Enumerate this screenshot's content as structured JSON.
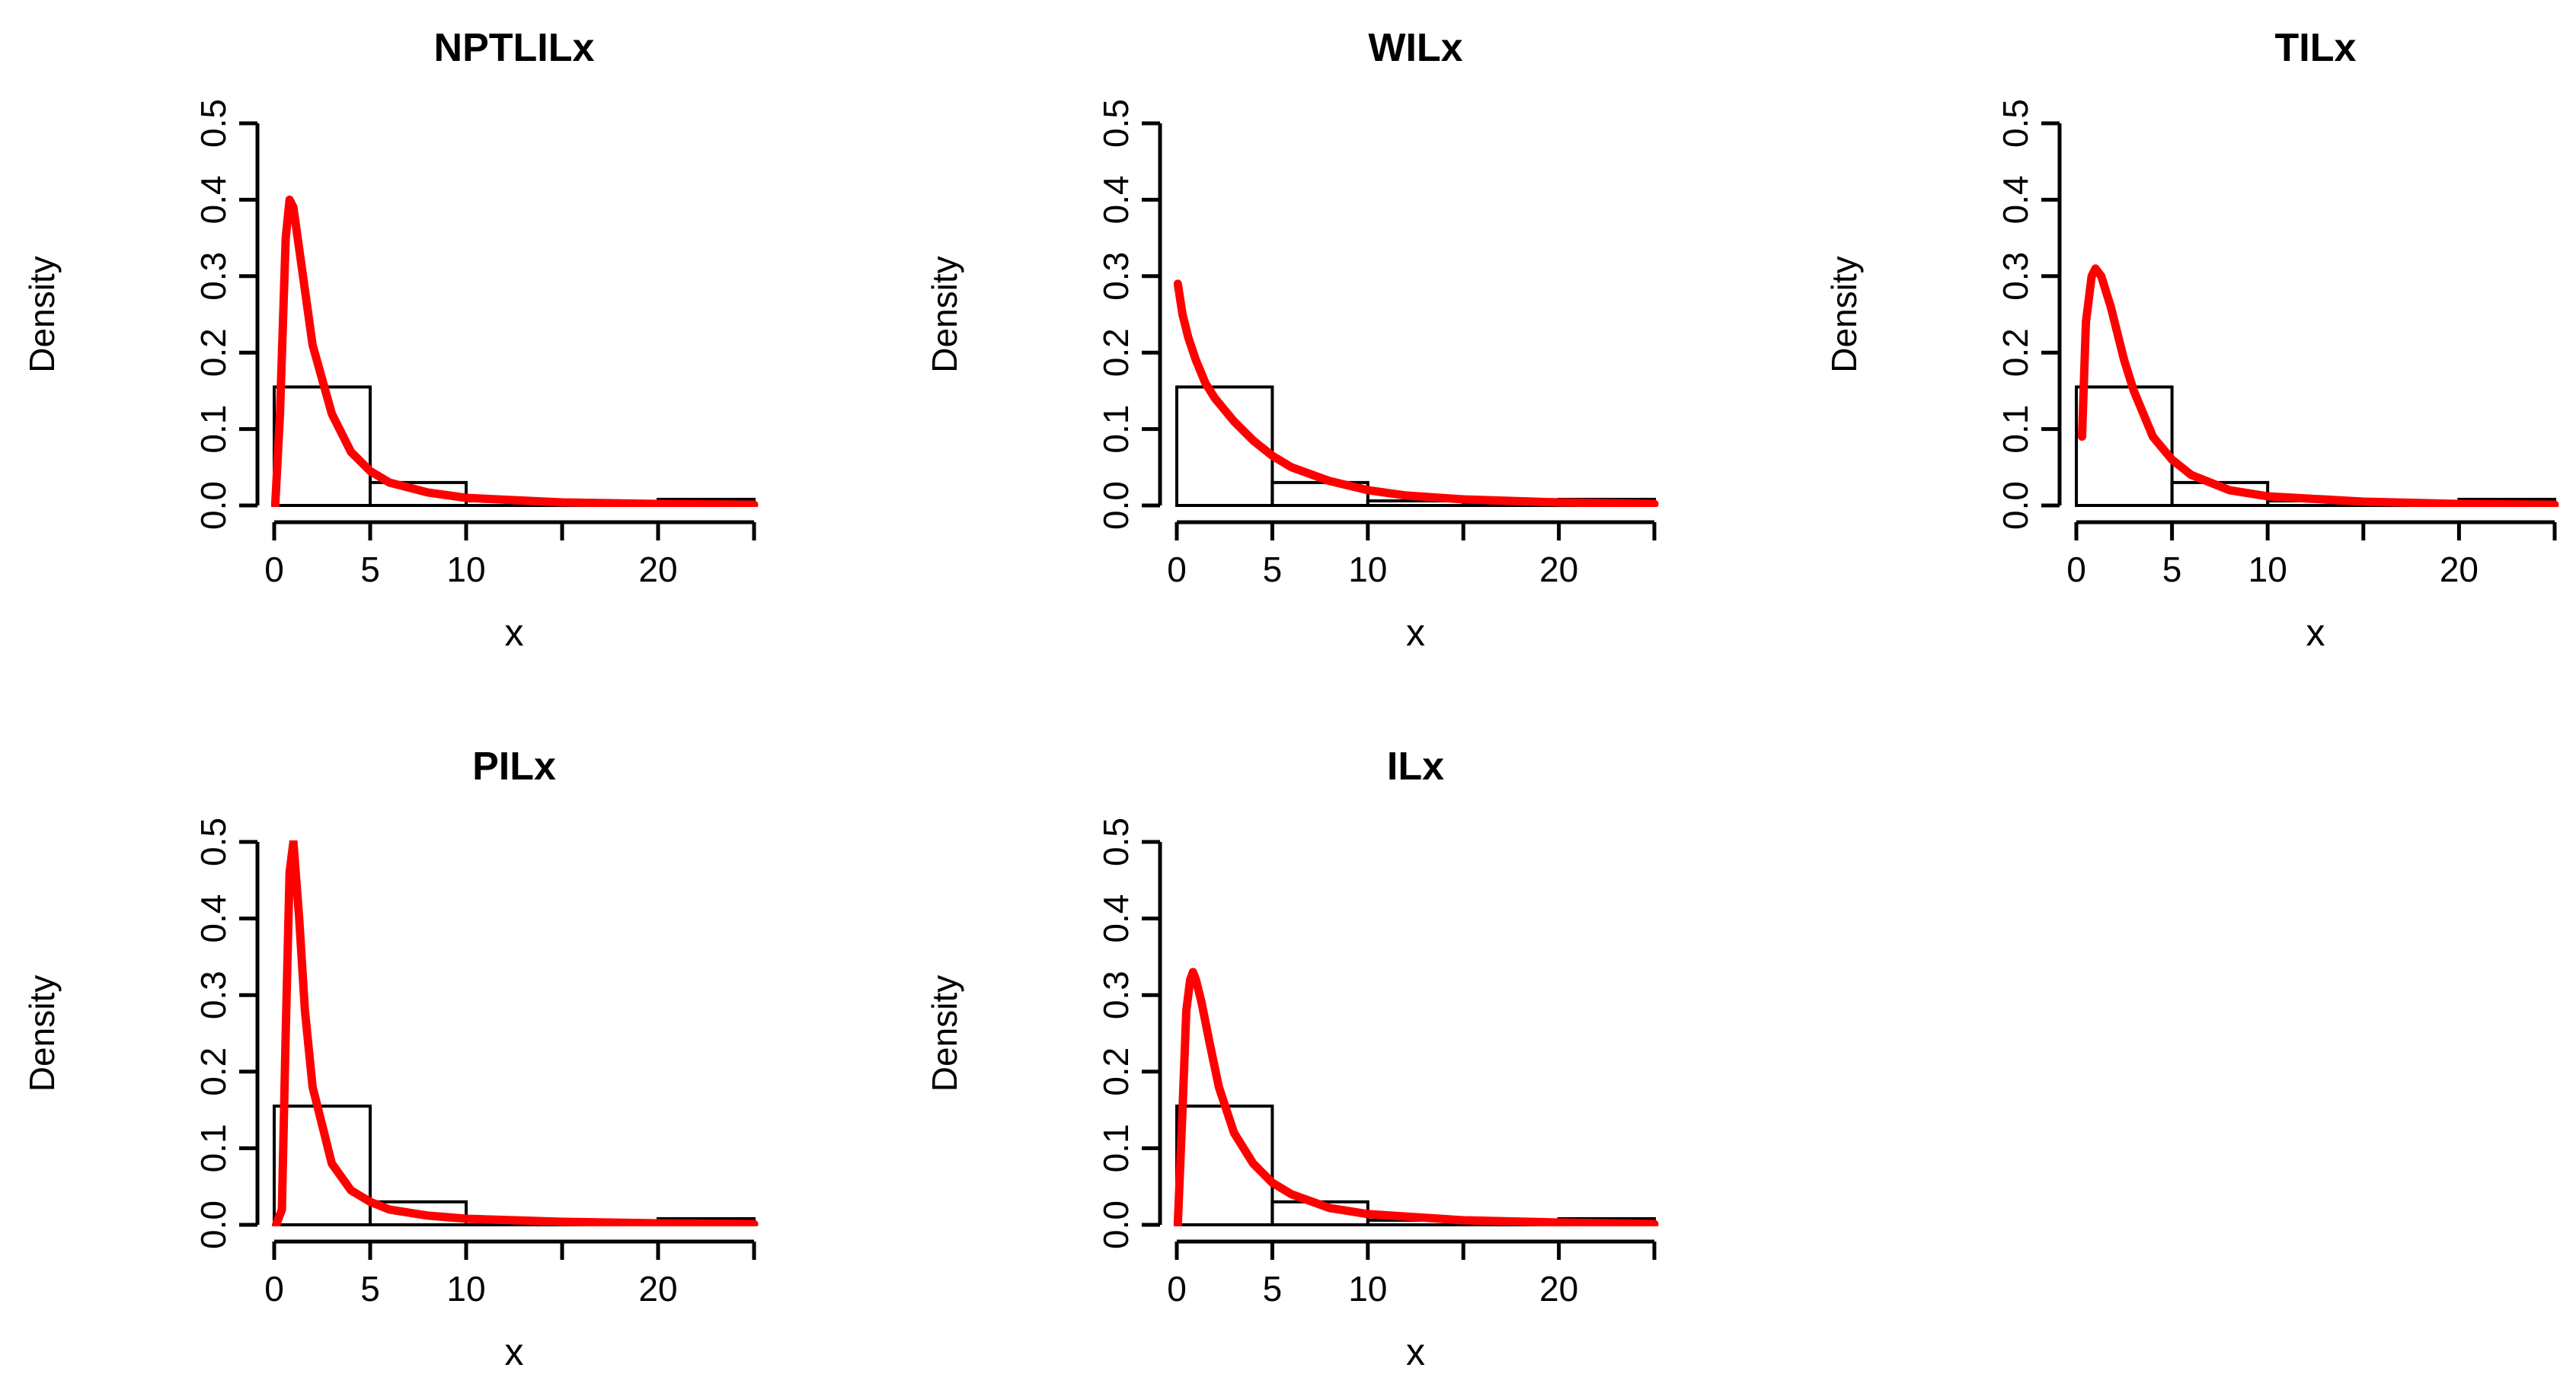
{
  "colors": {
    "curve": "#ff0000",
    "axis": "#000000",
    "bars": "#000000",
    "background": "#ffffff"
  },
  "chart_data": [
    {
      "type": "bar",
      "title": "NPTLILx",
      "xlabel": "x",
      "ylabel": "Density",
      "xlim": [
        0,
        25
      ],
      "ylim": [
        0,
        0.5
      ],
      "xticks": [
        0,
        5,
        10,
        15,
        20,
        25
      ],
      "xtick_labels": [
        "0",
        "5",
        "10",
        "",
        "20",
        ""
      ],
      "yticks": [
        0.0,
        0.1,
        0.2,
        0.3,
        0.4,
        0.5
      ],
      "ytick_labels": [
        "0.0",
        "0.1",
        "0.2",
        "0.3",
        "0.4",
        "0.5"
      ],
      "histogram": {
        "bin_edges": [
          0,
          5,
          10,
          15,
          20,
          25
        ],
        "densities": [
          0.155,
          0.03,
          0.006,
          0.002,
          0.008
        ]
      },
      "density_curve": {
        "x": [
          0.05,
          0.3,
          0.6,
          0.8,
          1.0,
          1.5,
          2,
          3,
          4,
          5,
          6,
          8,
          10,
          15,
          20,
          25
        ],
        "y": [
          0.0,
          0.12,
          0.35,
          0.4,
          0.39,
          0.3,
          0.21,
          0.12,
          0.07,
          0.045,
          0.03,
          0.017,
          0.01,
          0.004,
          0.002,
          0.001
        ]
      }
    },
    {
      "type": "bar",
      "title": "WILx",
      "xlabel": "x",
      "ylabel": "Density",
      "xlim": [
        0,
        25
      ],
      "ylim": [
        0,
        0.5
      ],
      "xticks": [
        0,
        5,
        10,
        15,
        20,
        25
      ],
      "xtick_labels": [
        "0",
        "5",
        "10",
        "",
        "20",
        ""
      ],
      "yticks": [
        0.0,
        0.1,
        0.2,
        0.3,
        0.4,
        0.5
      ],
      "ytick_labels": [
        "0.0",
        "0.1",
        "0.2",
        "0.3",
        "0.4",
        "0.5"
      ],
      "histogram": {
        "bin_edges": [
          0,
          5,
          10,
          15,
          20,
          25
        ],
        "densities": [
          0.155,
          0.03,
          0.006,
          0.002,
          0.008
        ]
      },
      "density_curve": {
        "x": [
          0.05,
          0.3,
          0.6,
          1,
          1.5,
          2,
          3,
          4,
          5,
          6,
          8,
          10,
          12,
          15,
          20,
          25
        ],
        "y": [
          0.29,
          0.25,
          0.22,
          0.19,
          0.16,
          0.14,
          0.11,
          0.085,
          0.065,
          0.05,
          0.032,
          0.02,
          0.013,
          0.008,
          0.004,
          0.002
        ]
      }
    },
    {
      "type": "bar",
      "title": "TILx",
      "xlabel": "x",
      "ylabel": "Density",
      "xlim": [
        0,
        25
      ],
      "ylim": [
        0,
        0.5
      ],
      "xticks": [
        0,
        5,
        10,
        15,
        20,
        25
      ],
      "xtick_labels": [
        "0",
        "5",
        "10",
        "",
        "20",
        ""
      ],
      "yticks": [
        0.0,
        0.1,
        0.2,
        0.3,
        0.4,
        0.5
      ],
      "ytick_labels": [
        "0.0",
        "0.1",
        "0.2",
        "0.3",
        "0.4",
        "0.5"
      ],
      "histogram": {
        "bin_edges": [
          0,
          5,
          10,
          15,
          20,
          25
        ],
        "densities": [
          0.155,
          0.03,
          0.006,
          0.002,
          0.008
        ]
      },
      "density_curve": {
        "x": [
          0.3,
          0.5,
          0.8,
          1.0,
          1.3,
          1.8,
          2.5,
          3,
          4,
          5,
          6,
          8,
          10,
          15,
          20,
          25
        ],
        "y": [
          0.09,
          0.24,
          0.3,
          0.31,
          0.3,
          0.26,
          0.19,
          0.15,
          0.09,
          0.06,
          0.04,
          0.02,
          0.012,
          0.005,
          0.002,
          0.001
        ]
      }
    },
    {
      "type": "bar",
      "title": "PILx",
      "xlabel": "x",
      "ylabel": "Density",
      "xlim": [
        0,
        25
      ],
      "ylim": [
        0,
        0.5
      ],
      "xticks": [
        0,
        5,
        10,
        15,
        20,
        25
      ],
      "xtick_labels": [
        "0",
        "5",
        "10",
        "",
        "20",
        ""
      ],
      "yticks": [
        0.0,
        0.1,
        0.2,
        0.3,
        0.4,
        0.5
      ],
      "ytick_labels": [
        "0.0",
        "0.1",
        "0.2",
        "0.3",
        "0.4",
        "0.5"
      ],
      "histogram": {
        "bin_edges": [
          0,
          5,
          10,
          15,
          20,
          25
        ],
        "densities": [
          0.155,
          0.03,
          0.006,
          0.002,
          0.008
        ]
      },
      "density_curve": {
        "x": [
          0.1,
          0.4,
          0.6,
          0.8,
          1.0,
          1.3,
          1.6,
          2,
          3,
          4,
          5,
          6,
          8,
          10,
          15,
          20,
          25
        ],
        "y": [
          0.0,
          0.02,
          0.25,
          0.46,
          0.5,
          0.4,
          0.28,
          0.18,
          0.08,
          0.045,
          0.03,
          0.02,
          0.012,
          0.008,
          0.004,
          0.002,
          0.001
        ]
      }
    },
    {
      "type": "bar",
      "title": "ILx",
      "xlabel": "x",
      "ylabel": "Density",
      "xlim": [
        0,
        25
      ],
      "ylim": [
        0,
        0.5
      ],
      "xticks": [
        0,
        5,
        10,
        15,
        20,
        25
      ],
      "xtick_labels": [
        "0",
        "5",
        "10",
        "",
        "20",
        ""
      ],
      "yticks": [
        0.0,
        0.1,
        0.2,
        0.3,
        0.4,
        0.5
      ],
      "ytick_labels": [
        "0.0",
        "0.1",
        "0.2",
        "0.3",
        "0.4",
        "0.5"
      ],
      "histogram": {
        "bin_edges": [
          0,
          5,
          10,
          15,
          20,
          25
        ],
        "densities": [
          0.155,
          0.03,
          0.006,
          0.002,
          0.008
        ]
      },
      "density_curve": {
        "x": [
          0.05,
          0.3,
          0.5,
          0.7,
          0.85,
          1.0,
          1.3,
          1.7,
          2.2,
          3,
          4,
          5,
          6,
          8,
          10,
          15,
          20,
          25
        ],
        "y": [
          0.0,
          0.15,
          0.28,
          0.32,
          0.33,
          0.32,
          0.29,
          0.24,
          0.18,
          0.12,
          0.08,
          0.055,
          0.04,
          0.022,
          0.014,
          0.006,
          0.003,
          0.001
        ]
      }
    }
  ]
}
